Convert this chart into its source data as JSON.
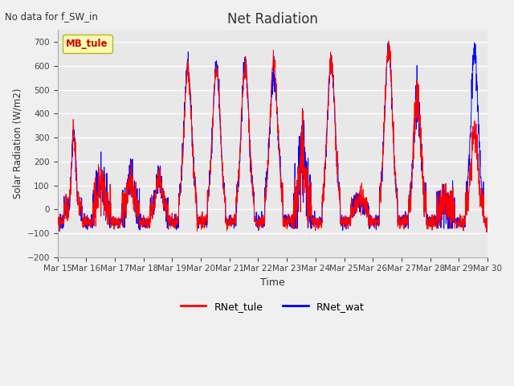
{
  "title": "Net Radiation",
  "top_left_text": "No data for f_SW_in",
  "legend_box_label": "MB_tule",
  "ylabel": "Solar Radiation (W/m2)",
  "xlabel": "Time",
  "ylim": [
    -200,
    750
  ],
  "yticks": [
    -200,
    -100,
    0,
    100,
    200,
    300,
    400,
    500,
    600,
    700
  ],
  "line1_label": "RNet_tule",
  "line1_color": "red",
  "line2_label": "RNet_wat",
  "line2_color": "blue",
  "bg_color": "#e8e8e8",
  "fig_bg_color": "#f0f0f0",
  "legend_box_color": "#ffffa0",
  "legend_box_edge": "#aaa800",
  "start_day": 15,
  "end_day": 30,
  "n_days": 15,
  "points_per_day": 144
}
